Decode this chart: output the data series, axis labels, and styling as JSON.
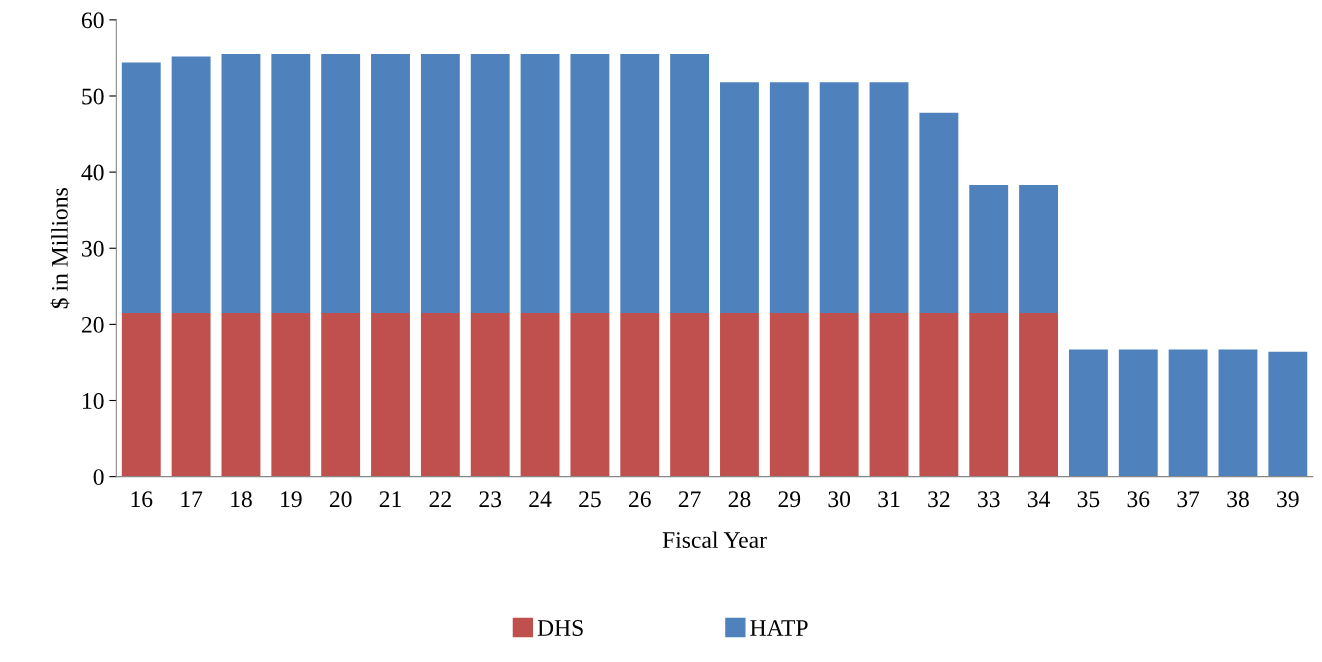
{
  "chart_data": {
    "type": "bar",
    "stacked": true,
    "xlabel": "Fiscal Year",
    "ylabel": "$ in Millions",
    "categories": [
      "16",
      "17",
      "18",
      "19",
      "20",
      "21",
      "22",
      "23",
      "24",
      "25",
      "26",
      "27",
      "28",
      "29",
      "30",
      "31",
      "32",
      "33",
      "34",
      "35",
      "36",
      "37",
      "38",
      "39"
    ],
    "series": [
      {
        "name": "DHS",
        "color": "#c0504d",
        "values": [
          21.5,
          21.5,
          21.5,
          21.5,
          21.5,
          21.5,
          21.5,
          21.5,
          21.5,
          21.5,
          21.5,
          21.5,
          21.5,
          21.5,
          21.5,
          21.5,
          21.5,
          21.5,
          21.5,
          null,
          null,
          null,
          null,
          null
        ]
      },
      {
        "name": "HATP",
        "color": "#4f81bd",
        "values": [
          32.9,
          33.7,
          34.0,
          34.0,
          34.0,
          34.0,
          34.0,
          34.0,
          34.0,
          34.0,
          34.0,
          34.0,
          30.3,
          30.3,
          30.3,
          30.3,
          26.3,
          16.8,
          16.8,
          16.7,
          16.7,
          16.7,
          16.7,
          16.4
        ]
      }
    ],
    "ylim": [
      0,
      60
    ],
    "yticks": [
      0,
      10,
      20,
      30,
      40,
      50,
      60
    ],
    "grid": false,
    "legend": "bottom"
  }
}
